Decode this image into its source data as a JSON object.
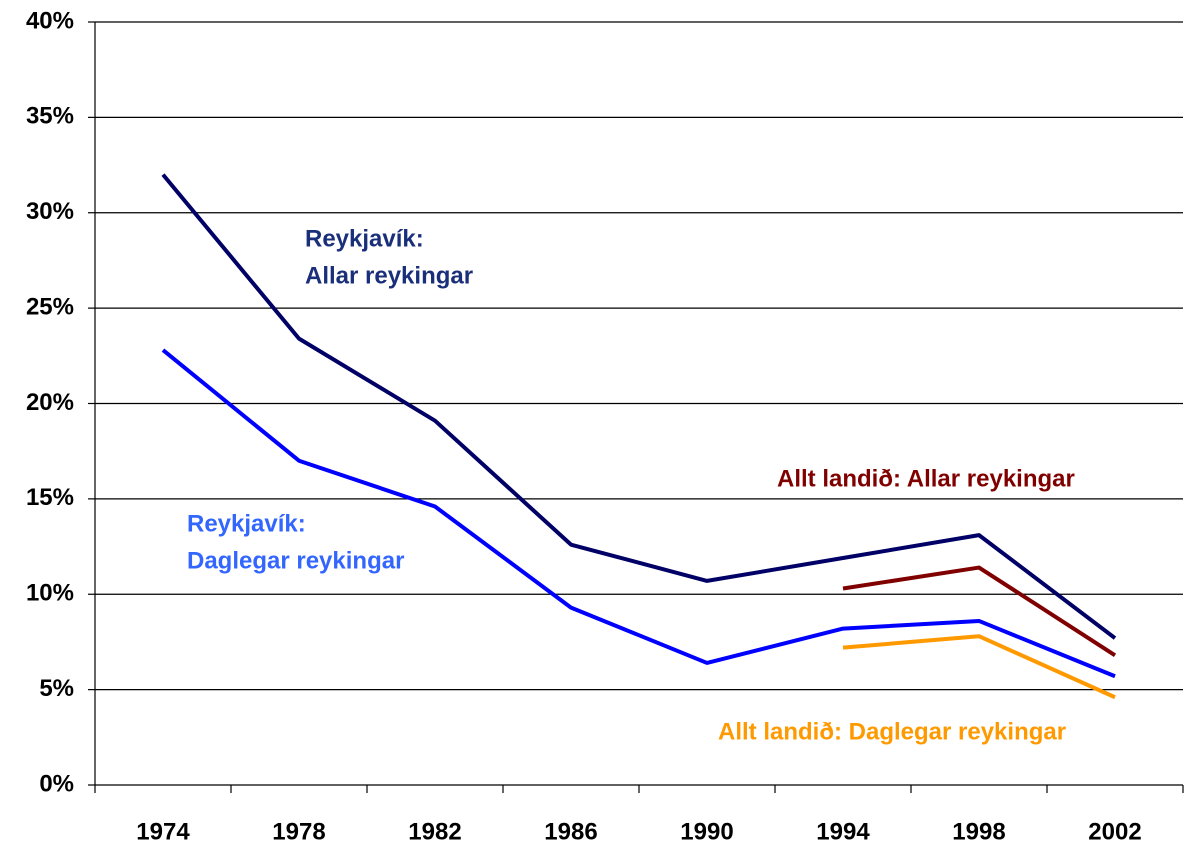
{
  "chart_data": {
    "type": "line",
    "categories": [
      "1974",
      "1978",
      "1982",
      "1986",
      "1990",
      "1994",
      "1998",
      "2002"
    ],
    "ylim": [
      0,
      40
    ],
    "yticks": [
      {
        "value": 0,
        "label": "0%"
      },
      {
        "value": 5,
        "label": "5%"
      },
      {
        "value": 10,
        "label": "10%"
      },
      {
        "value": 15,
        "label": "15%"
      },
      {
        "value": 20,
        "label": "20%"
      },
      {
        "value": 25,
        "label": "25%"
      },
      {
        "value": 30,
        "label": "30%"
      },
      {
        "value": 35,
        "label": "35%"
      },
      {
        "value": 40,
        "label": "40%"
      }
    ],
    "grid": true,
    "series": [
      {
        "name_lines": [
          "Reykjavík:",
          "Allar reykingar"
        ],
        "color": "#000066",
        "label_color": "#1a2f7a",
        "values": [
          32,
          23.4,
          19.1,
          12.6,
          10.7,
          11.9,
          13.1,
          7.7
        ]
      },
      {
        "name_lines": [
          "Reykjavík:",
          "Daglegar reykingar"
        ],
        "color": "#0000ff",
        "label_color": "#3366ff",
        "values": [
          22.8,
          17.0,
          14.6,
          9.3,
          6.4,
          8.2,
          8.6,
          5.7
        ]
      },
      {
        "name_lines": [
          "Allt landið: Allar reykingar"
        ],
        "color": "#800000",
        "label_color": "#800000",
        "values": [
          null,
          null,
          null,
          null,
          null,
          10.3,
          11.4,
          6.8
        ]
      },
      {
        "name_lines": [
          "Allt landið: Daglegar reykingar"
        ],
        "color": "#ff9900",
        "label_color": "#ff9900",
        "values": [
          null,
          null,
          null,
          null,
          null,
          7.2,
          7.8,
          4.6
        ]
      }
    ]
  }
}
